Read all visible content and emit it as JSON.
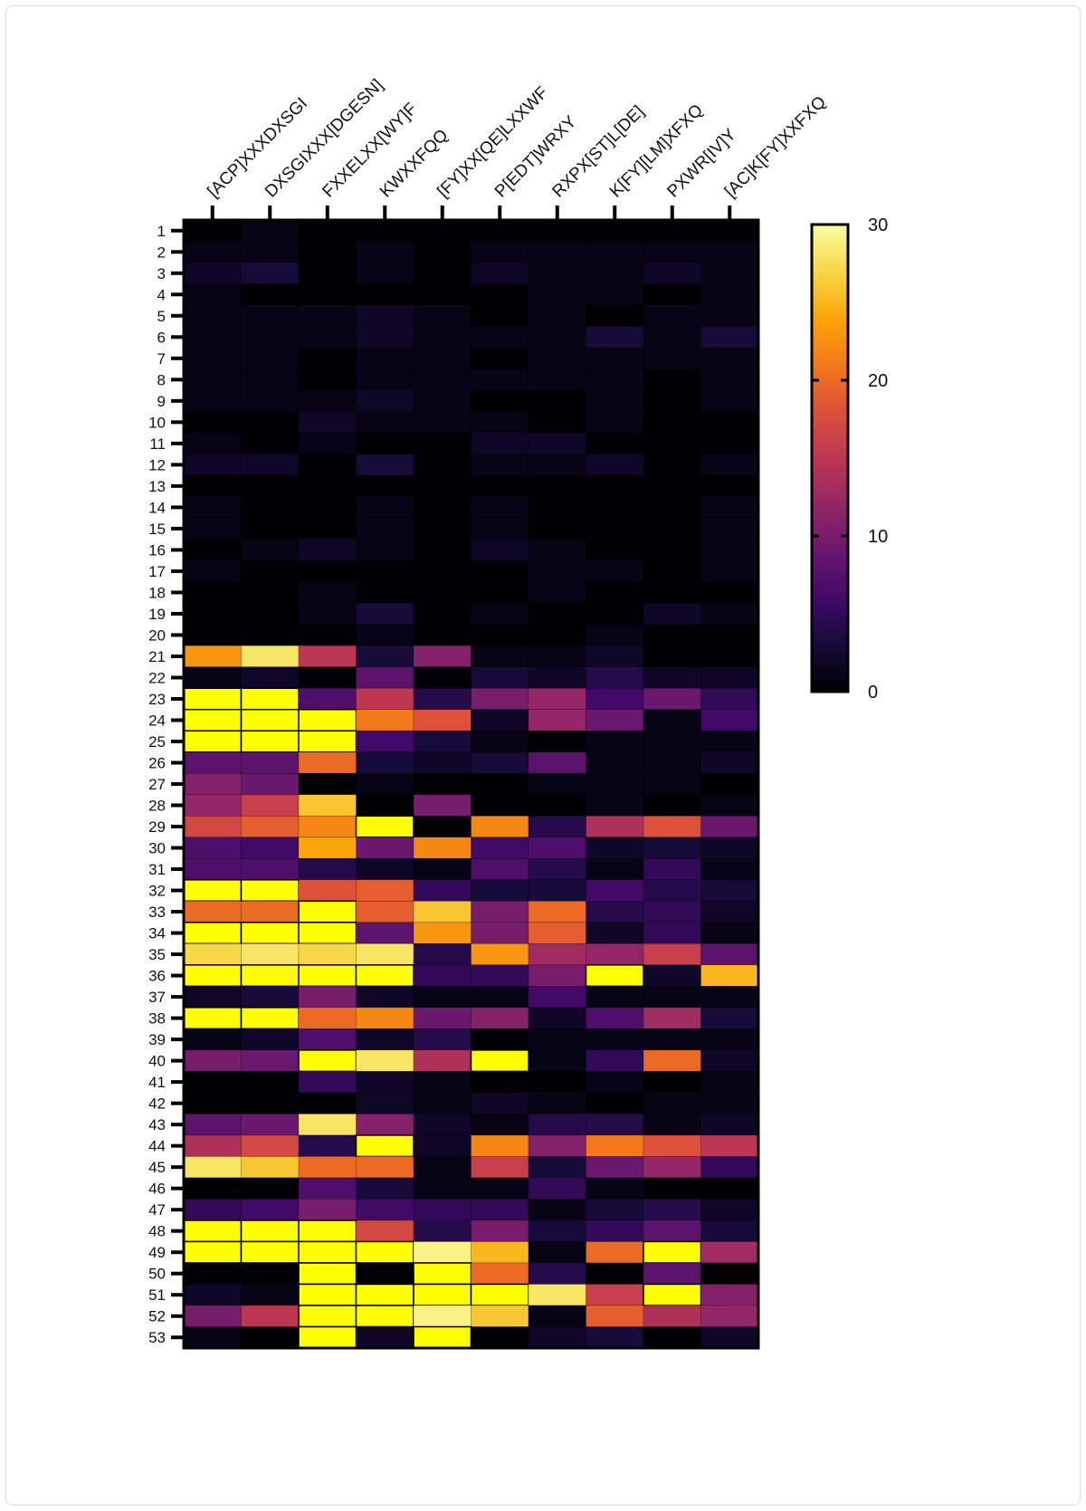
{
  "chart_data": {
    "type": "heatmap",
    "title": "",
    "columns": [
      "[ACP]XXXDXSGI",
      "DXSGIXXX[DGESN]",
      "FXXELXX[WY]F",
      "KWXXFQQ",
      "[FY]XX[QE]LXXWF",
      "P[EDT]WRXY",
      "RXPX[ST]L[DE]",
      "K[FY][LM]XFXQ",
      "PXWR[IV]Y",
      "[AC]K[FY]XXFXQ"
    ],
    "rows": [
      "1",
      "2",
      "3",
      "4",
      "5",
      "6",
      "7",
      "8",
      "9",
      "10",
      "11",
      "12",
      "13",
      "14",
      "15",
      "16",
      "17",
      "18",
      "19",
      "20",
      "21",
      "22",
      "23",
      "24",
      "25",
      "26",
      "27",
      "28",
      "29",
      "30",
      "31",
      "32",
      "33",
      "34",
      "35",
      "36",
      "37",
      "38",
      "39",
      "40",
      "41",
      "42",
      "43",
      "44",
      "45",
      "46",
      "47",
      "48",
      "49",
      "50",
      "51",
      "52",
      "53"
    ],
    "values": [
      [
        0,
        1,
        0,
        0,
        0,
        0,
        0,
        0,
        0,
        0
      ],
      [
        1,
        1,
        0,
        1,
        0,
        1,
        1,
        1,
        1,
        1
      ],
      [
        2,
        3,
        0,
        1,
        0,
        2,
        1,
        1,
        2,
        1
      ],
      [
        1,
        0,
        0,
        0,
        0,
        0,
        1,
        1,
        0,
        1
      ],
      [
        1,
        1,
        1,
        2,
        1,
        0,
        1,
        0,
        1,
        1
      ],
      [
        1,
        1,
        1,
        2,
        1,
        1,
        1,
        3,
        1,
        3
      ],
      [
        1,
        1,
        0,
        1,
        1,
        0,
        1,
        1,
        1,
        1
      ],
      [
        1,
        1,
        0,
        1,
        1,
        1,
        1,
        1,
        0,
        1
      ],
      [
        1,
        1,
        1,
        2,
        1,
        0,
        0,
        1,
        0,
        1
      ],
      [
        0,
        0,
        2,
        1,
        1,
        1,
        0,
        1,
        0,
        0
      ],
      [
        1,
        0,
        1,
        0,
        0,
        2,
        2,
        0,
        0,
        0
      ],
      [
        2,
        2,
        0,
        3,
        0,
        1,
        1,
        2,
        0,
        1
      ],
      [
        0,
        0,
        0,
        0,
        0,
        0,
        0,
        0,
        0,
        0
      ],
      [
        1,
        0,
        0,
        1,
        0,
        1,
        0,
        0,
        0,
        1
      ],
      [
        1,
        0,
        0,
        1,
        0,
        1,
        0,
        0,
        0,
        1
      ],
      [
        0,
        1,
        2,
        1,
        0,
        2,
        1,
        0,
        0,
        1
      ],
      [
        1,
        0,
        0,
        0,
        0,
        0,
        1,
        1,
        0,
        1
      ],
      [
        0,
        0,
        1,
        0,
        0,
        0,
        1,
        0,
        0,
        0
      ],
      [
        0,
        0,
        1,
        3,
        0,
        1,
        0,
        0,
        2,
        1
      ],
      [
        0,
        0,
        0,
        1,
        0,
        0,
        0,
        1,
        0,
        0
      ],
      [
        23,
        28,
        15,
        3,
        11,
        1,
        1,
        2,
        0,
        0
      ],
      [
        1,
        2,
        0,
        8,
        0,
        3,
        2,
        4,
        2,
        2
      ],
      [
        35,
        35,
        7,
        15,
        4,
        10,
        12,
        6,
        9,
        5
      ],
      [
        35,
        35,
        35,
        21,
        18,
        2,
        12,
        9,
        1,
        6
      ],
      [
        35,
        35,
        35,
        6,
        3,
        1,
        0,
        1,
        1,
        1
      ],
      [
        8,
        8,
        20,
        3,
        2,
        3,
        8,
        1,
        1,
        2
      ],
      [
        11,
        9,
        0,
        1,
        0,
        0,
        1,
        1,
        1,
        0
      ],
      [
        12,
        16,
        26,
        0,
        10,
        0,
        0,
        1,
        0,
        1
      ],
      [
        17,
        19,
        22,
        35,
        0,
        22,
        4,
        14,
        18,
        9
      ],
      [
        7,
        6,
        24,
        9,
        22,
        6,
        7,
        2,
        3,
        2
      ],
      [
        7,
        7,
        4,
        2,
        1,
        7,
        4,
        1,
        5,
        1
      ],
      [
        35,
        35,
        18,
        19,
        5,
        3,
        3,
        6,
        4,
        3
      ],
      [
        20,
        20,
        35,
        19,
        26,
        10,
        20,
        4,
        5,
        2
      ],
      [
        35,
        35,
        35,
        8,
        23,
        10,
        19,
        2,
        5,
        1
      ],
      [
        27,
        28,
        27,
        28,
        4,
        23,
        13,
        12,
        16,
        8
      ],
      [
        35,
        35,
        35,
        35,
        5,
        5,
        10,
        35,
        2,
        25
      ],
      [
        2,
        3,
        10,
        2,
        1,
        1,
        6,
        1,
        1,
        1
      ],
      [
        35,
        35,
        20,
        22,
        9,
        11,
        2,
        7,
        13,
        3
      ],
      [
        1,
        2,
        7,
        2,
        4,
        0,
        1,
        1,
        1,
        1
      ],
      [
        10,
        9,
        35,
        28,
        14,
        35,
        1,
        5,
        20,
        2
      ],
      [
        0,
        0,
        5,
        2,
        1,
        0,
        0,
        1,
        0,
        1
      ],
      [
        0,
        0,
        0,
        2,
        1,
        2,
        1,
        0,
        1,
        1
      ],
      [
        8,
        9,
        28,
        11,
        2,
        1,
        4,
        4,
        1,
        2
      ],
      [
        14,
        17,
        4,
        35,
        2,
        22,
        11,
        21,
        18,
        15
      ],
      [
        28,
        26,
        20,
        20,
        1,
        16,
        3,
        9,
        12,
        5
      ],
      [
        0,
        0,
        7,
        3,
        1,
        1,
        5,
        1,
        0,
        0
      ],
      [
        5,
        6,
        10,
        6,
        5,
        5,
        1,
        3,
        4,
        2
      ],
      [
        35,
        35,
        35,
        17,
        4,
        10,
        3,
        5,
        8,
        3
      ],
      [
        35,
        35,
        35,
        35,
        29,
        25,
        1,
        20,
        35,
        13
      ],
      [
        0,
        0,
        35,
        0,
        35,
        20,
        4,
        0,
        8,
        0
      ],
      [
        2,
        1,
        35,
        35,
        35,
        35,
        28,
        16,
        35,
        11
      ],
      [
        10,
        15,
        35,
        35,
        29,
        26,
        1,
        19,
        14,
        12
      ],
      [
        1,
        0,
        35,
        2,
        35,
        0,
        2,
        3,
        0,
        2
      ]
    ],
    "colormap": "inferno",
    "over_color": "#ffff00",
    "colorbar": {
      "range": [
        0,
        30
      ],
      "ticks": [
        "0",
        "10",
        "20",
        "30"
      ]
    },
    "grid": false
  }
}
